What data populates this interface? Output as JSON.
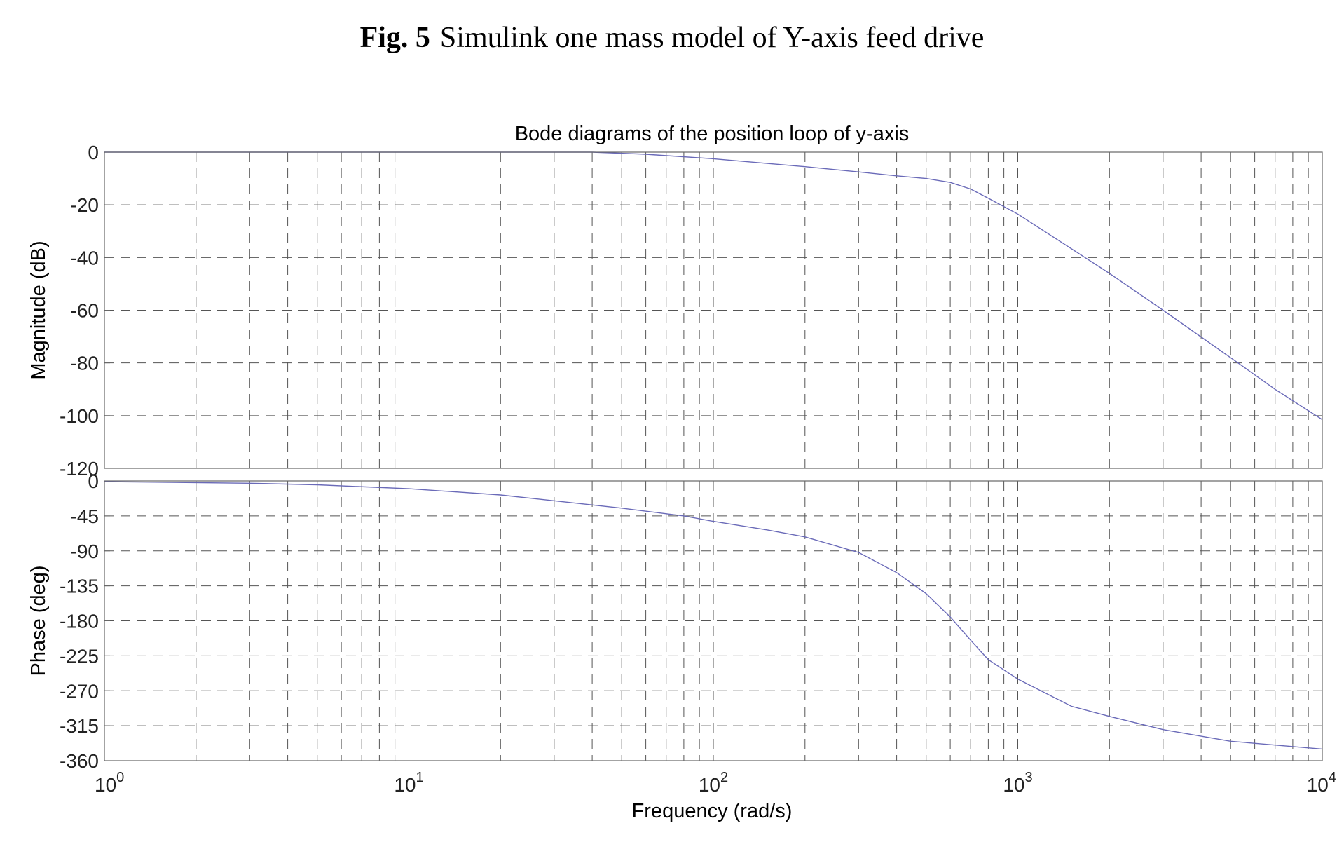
{
  "caption": {
    "label": "Fig. 5",
    "text": "Simulink one mass model of Y-axis feed drive"
  },
  "chart_data": {
    "type": "line",
    "title": "Bode diagrams of the position loop of y-axis",
    "xlabel": "Frequency  (rad/s)",
    "x_scale": "log",
    "xlim": [
      1,
      10000
    ],
    "x_ticks": [
      {
        "base": "10",
        "exp": "0",
        "value": 1
      },
      {
        "base": "10",
        "exp": "1",
        "value": 10
      },
      {
        "base": "10",
        "exp": "2",
        "value": 100
      },
      {
        "base": "10",
        "exp": "3",
        "value": 1000
      },
      {
        "base": "10",
        "exp": "4",
        "value": 10000
      }
    ],
    "grid": true,
    "line_color": "#6a6ab8",
    "panels": [
      {
        "name": "magnitude",
        "ylabel": "Magnitude (dB)",
        "ylim": [
          -120,
          0
        ],
        "y_ticks": [
          0,
          -20,
          -40,
          -60,
          -80,
          -100,
          -120
        ],
        "y_tick_labels": [
          "0",
          "-20",
          "-40",
          "-60",
          "-80",
          "-100",
          "-120"
        ],
        "series": [
          {
            "x": [
              1,
              10,
              20,
              40,
              60,
              100,
              200,
              300,
              400,
              500,
              600,
              700,
              800,
              1000,
              2000,
              3000,
              5000,
              7000,
              10000
            ],
            "y": [
              0,
              0,
              0,
              0,
              -0.8,
              -2.5,
              -5.5,
              -7.5,
              -9.0,
              -10.0,
              -11.5,
              -14.0,
              -17.5,
              -23.5,
              -46.0,
              -60.0,
              -78.0,
              -90.0,
              -101.5
            ]
          }
        ]
      },
      {
        "name": "phase",
        "ylabel": "Phase (deg)",
        "ylim": [
          -360,
          0
        ],
        "y_ticks": [
          0,
          -45,
          -90,
          -135,
          -180,
          -225,
          -270,
          -315,
          -360
        ],
        "y_tick_labels": [
          "0",
          "-45",
          "-90",
          "-135",
          "-180",
          "-225",
          "-270",
          "-315",
          "-360"
        ],
        "series": [
          {
            "x": [
              1,
              3,
              5,
              10,
              20,
              50,
              80,
              100,
              150,
              200,
              300,
              400,
              500,
              600,
              700,
              800,
              1000,
              1500,
              2000,
              3000,
              5000,
              10000
            ],
            "y": [
              -1,
              -3,
              -5,
              -10,
              -18,
              -35,
              -45,
              -52,
              -63,
              -72,
              -92,
              -118,
              -145,
              -175,
              -205,
              -230,
              -255,
              -290,
              -303,
              -320,
              -335,
              -345
            ]
          }
        ]
      }
    ]
  }
}
